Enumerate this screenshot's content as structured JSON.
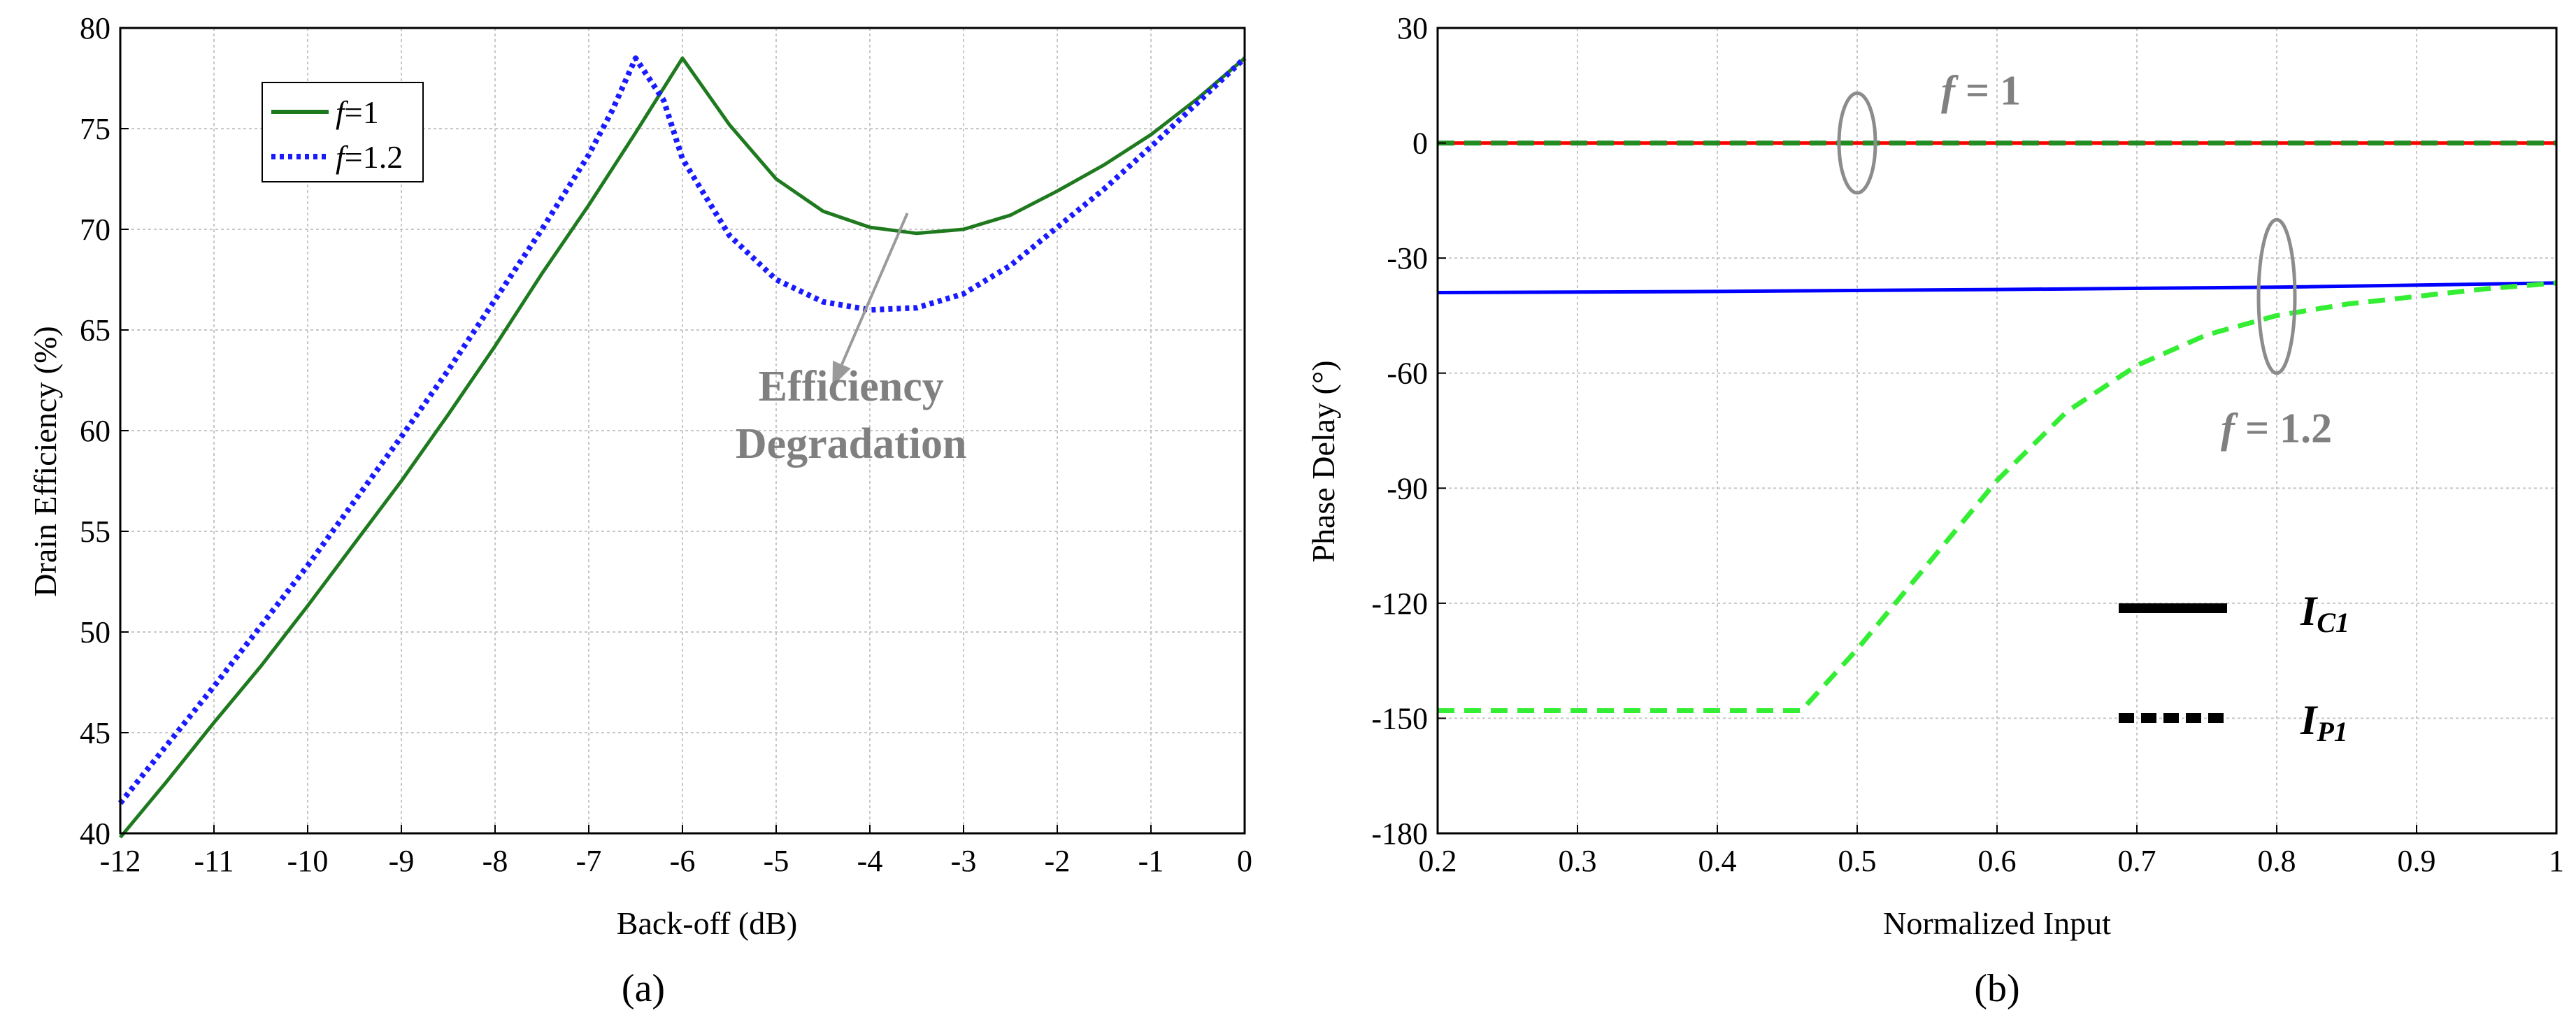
{
  "chart_data": [
    {
      "type": "line",
      "caption": "(a)",
      "xlabel": "Back-off (dB)",
      "ylabel": "Drain Efficiency (%)",
      "xlim": [
        -12,
        0
      ],
      "ylim": [
        40,
        80
      ],
      "xticks": [
        -12,
        -11,
        -10,
        -9,
        -8,
        -7,
        -6,
        -5,
        -4,
        -3,
        -2,
        -1,
        0
      ],
      "yticks": [
        40,
        45,
        50,
        55,
        60,
        65,
        70,
        75,
        80
      ],
      "grid": true,
      "legend_position": "top-left",
      "series": [
        {
          "name": "f=1",
          "legend_italic": "f",
          "legend_rest": "=1",
          "color": "#1f7a1f",
          "style": "solid",
          "x": [
            -12,
            -11.5,
            -11,
            -10.5,
            -10,
            -9.5,
            -9,
            -8.5,
            -8,
            -7.5,
            -7,
            -6.5,
            -6,
            -5.5,
            -5,
            -4.5,
            -4,
            -3.5,
            -3,
            -2.5,
            -2,
            -1.5,
            -1,
            -0.5,
            0
          ],
          "y": [
            39.8,
            42.6,
            45.5,
            48.3,
            51.3,
            54.4,
            57.5,
            60.8,
            64.2,
            67.8,
            71.2,
            74.8,
            78.5,
            75.2,
            72.5,
            70.9,
            70.1,
            69.8,
            70.0,
            70.7,
            71.9,
            73.2,
            74.7,
            76.5,
            78.5
          ]
        },
        {
          "name": "f=1.2",
          "legend_italic": "f",
          "legend_rest": "=1.2",
          "color": "#1a1aff",
          "style": "dotted",
          "x": [
            -12,
            -11.5,
            -11,
            -10.5,
            -10,
            -9.5,
            -9,
            -8.5,
            -8,
            -7.5,
            -7,
            -6.75,
            -6.5,
            -6.2,
            -6,
            -5.5,
            -5,
            -4.5,
            -4,
            -3.5,
            -3,
            -2.5,
            -2,
            -1.5,
            -1,
            -0.5,
            0
          ],
          "y": [
            41.5,
            44.4,
            47.3,
            50.3,
            53.3,
            56.5,
            59.7,
            63.0,
            66.5,
            70.0,
            73.7,
            75.9,
            78.5,
            76.4,
            73.5,
            69.7,
            67.5,
            66.4,
            66.0,
            66.1,
            66.8,
            68.2,
            70.1,
            72.0,
            74.1,
            76.3,
            78.5
          ]
        }
      ],
      "annotation": {
        "line1": "Efficiency",
        "line2": "Degradation",
        "color": "#808080",
        "text_at": [
          -4.2,
          61.5
        ],
        "arrow_from": [
          -3.6,
          70.8
        ],
        "arrow_to": [
          -4.4,
          62.2
        ]
      }
    },
    {
      "type": "line",
      "caption": "(b)",
      "xlabel": "Normalized Input",
      "ylabel": "Phase Delay (°)",
      "xlim": [
        0.2,
        1
      ],
      "ylim": [
        -180,
        30
      ],
      "xticks": [
        0.2,
        0.3,
        0.4,
        0.5,
        0.6,
        0.7,
        0.8,
        0.9,
        1
      ],
      "xtick_labels": [
        "0.2",
        "0.3",
        "0.4",
        "0.5",
        "0.6",
        "0.7",
        "0.8",
        "0.9",
        "1"
      ],
      "yticks": [
        30,
        0,
        -30,
        -60,
        -90,
        -120,
        -150,
        -180
      ],
      "grid": true,
      "legend_position": "bottom-right",
      "series": [
        {
          "name": "IC1, f = 1",
          "color": "#ff0000",
          "style": "solid",
          "x": [
            0.2,
            1
          ],
          "y": [
            0,
            0
          ]
        },
        {
          "name": "IP1, f = 1",
          "color": "#228b22",
          "style": "dashed",
          "x": [
            0.2,
            1
          ],
          "y": [
            0,
            0
          ]
        },
        {
          "name": "IC1, f = 1.2",
          "color": "#0000ff",
          "style": "solid",
          "x": [
            0.2,
            0.4,
            0.6,
            0.8,
            1
          ],
          "y": [
            -39,
            -38.7,
            -38.2,
            -37.6,
            -36.5
          ]
        },
        {
          "name": "IP1, f = 1.2",
          "color": "#33ee33",
          "style": "dashed",
          "x": [
            0.2,
            0.3,
            0.4,
            0.46,
            0.5,
            0.55,
            0.6,
            0.65,
            0.7,
            0.75,
            0.8,
            0.85,
            0.9,
            0.95,
            1
          ],
          "y": [
            -148,
            -148,
            -148,
            -148,
            -132,
            -110,
            -88,
            -70,
            -58,
            -50,
            -45,
            -42,
            -40,
            -38,
            -36.5
          ]
        }
      ],
      "legend": [
        {
          "label_main": "I",
          "label_sub": "C1",
          "style": "solid"
        },
        {
          "label_main": "I",
          "label_sub": "P1",
          "style": "dashed"
        }
      ],
      "annotations": [
        {
          "italic": "f",
          "rest": " = 1",
          "color": "#808080",
          "text_at": [
            0.56,
            10
          ],
          "ellipse_center": [
            0.5,
            0
          ],
          "ellipse_radius": [
            0.013,
            13
          ]
        },
        {
          "italic": "f",
          "rest": " = 1.2",
          "color": "#808080",
          "text_at": [
            0.76,
            -78
          ],
          "ellipse_center": [
            0.8,
            -40
          ],
          "ellipse_radius": [
            0.013,
            20
          ]
        }
      ]
    }
  ]
}
